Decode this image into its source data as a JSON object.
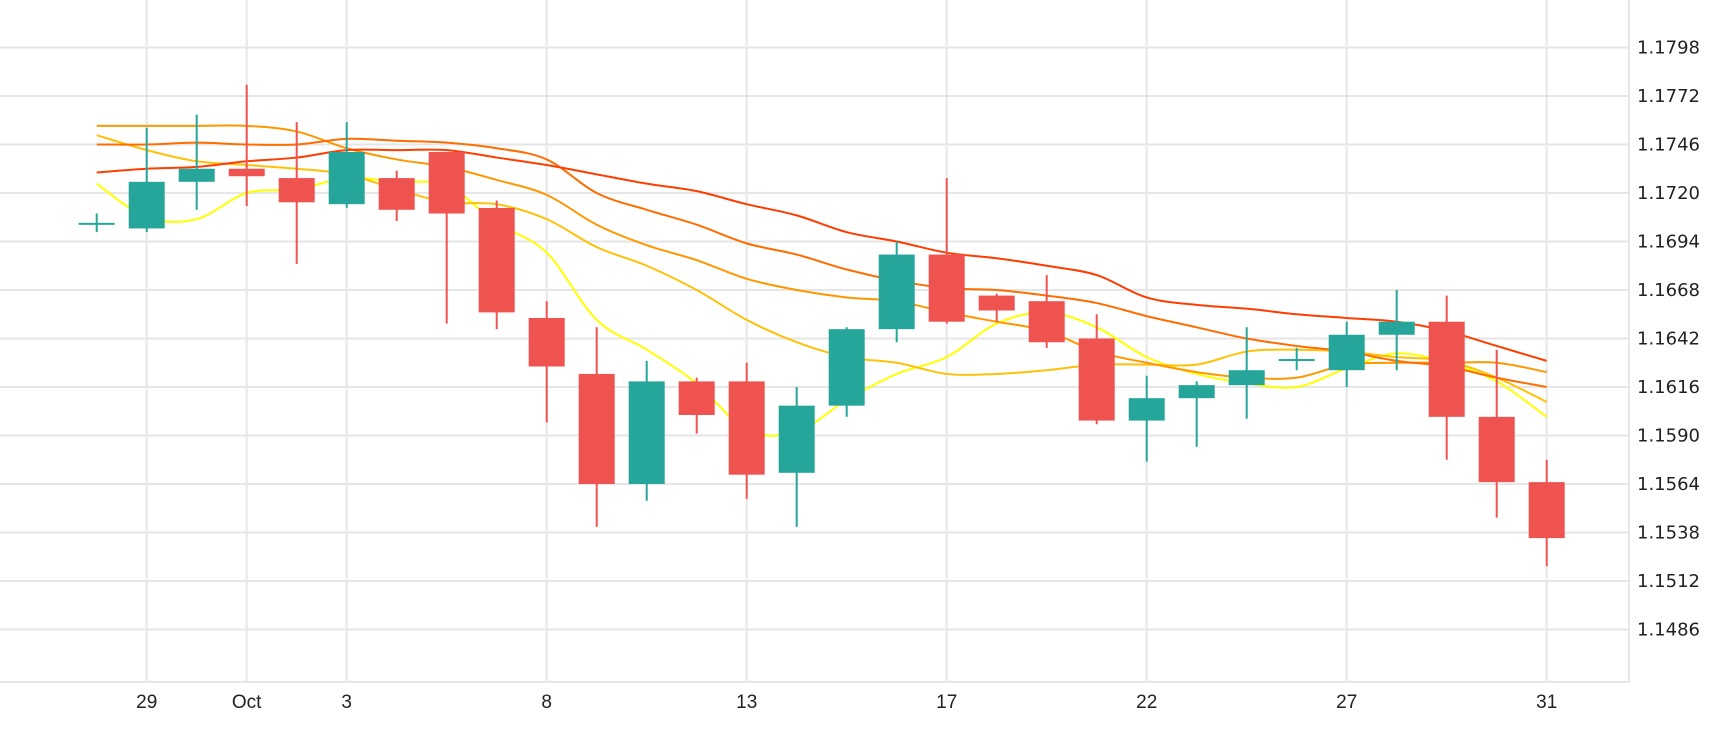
{
  "chart_data": {
    "type": "candlestick",
    "title": "",
    "xlabel": "",
    "ylabel": "",
    "ylim": [
      1.146,
      1.1825
    ],
    "grid": true,
    "y_ticks": [
      "1.1798",
      "1.1772",
      "1.1746",
      "1.1720",
      "1.1694",
      "1.1668",
      "1.1642",
      "1.1616",
      "1.1590",
      "1.1564",
      "1.1538",
      "1.1512",
      "1.1486"
    ],
    "x_ticks": [
      {
        "label": "29",
        "candle": 1
      },
      {
        "label": "Oct",
        "candle": 3
      },
      {
        "label": "3",
        "candle": 5
      },
      {
        "label": "8",
        "candle": 9
      },
      {
        "label": "13",
        "candle": 13
      },
      {
        "label": "17",
        "candle": 17
      },
      {
        "label": "22",
        "candle": 21
      },
      {
        "label": "27",
        "candle": 25
      },
      {
        "label": "31",
        "candle": 29
      }
    ],
    "candles_ohlc": [
      [
        1.1704,
        1.1709,
        1.1699,
        1.1704
      ],
      [
        1.1701,
        1.1755,
        1.1699,
        1.1726
      ],
      [
        1.1726,
        1.1762,
        1.1711,
        1.1733
      ],
      [
        1.1733,
        1.1778,
        1.1713,
        1.1729
      ],
      [
        1.1728,
        1.1758,
        1.1682,
        1.1715
      ],
      [
        1.1714,
        1.1758,
        1.1712,
        1.1742
      ],
      [
        1.1728,
        1.1732,
        1.1705,
        1.1711
      ],
      [
        1.1742,
        1.1742,
        1.165,
        1.1709
      ],
      [
        1.1712,
        1.1716,
        1.1647,
        1.1656
      ],
      [
        1.1653,
        1.1662,
        1.1597,
        1.1627
      ],
      [
        1.1623,
        1.1648,
        1.1541,
        1.1564
      ],
      [
        1.1564,
        1.163,
        1.1555,
        1.1619
      ],
      [
        1.1619,
        1.1621,
        1.1591,
        1.1601
      ],
      [
        1.1619,
        1.1629,
        1.1556,
        1.1569
      ],
      [
        1.157,
        1.1616,
        1.1541,
        1.1606
      ],
      [
        1.1606,
        1.1648,
        1.16,
        1.1647
      ],
      [
        1.1647,
        1.1694,
        1.164,
        1.1687
      ],
      [
        1.1687,
        1.1728,
        1.165,
        1.1651
      ],
      [
        1.1665,
        1.1666,
        1.1651,
        1.1657
      ],
      [
        1.1662,
        1.1676,
        1.1637,
        1.164
      ],
      [
        1.1642,
        1.1655,
        1.1596,
        1.1598
      ],
      [
        1.1598,
        1.1622,
        1.1576,
        1.161
      ],
      [
        1.161,
        1.1619,
        1.1584,
        1.1617
      ],
      [
        1.1617,
        1.1648,
        1.1599,
        1.1625
      ],
      [
        1.1631,
        1.1637,
        1.1625,
        1.1631
      ],
      [
        1.1625,
        1.1651,
        1.1616,
        1.1644
      ],
      [
        1.1644,
        1.1668,
        1.1625,
        1.1651
      ],
      [
        1.1651,
        1.1665,
        1.1577,
        1.16
      ],
      [
        1.16,
        1.1636,
        1.1546,
        1.1565
      ],
      [
        1.1565,
        1.1577,
        1.152,
        1.1535
      ]
    ],
    "colors": {
      "up": "#26a69a",
      "down": "#ef5350",
      "grid": "#e6e6e6"
    },
    "moving_averages": [
      {
        "color": "#ffff00",
        "values": [
          1.1725,
          1.1707,
          1.1706,
          1.172,
          1.1722,
          1.1728,
          1.1726,
          1.1724,
          1.1704,
          1.1688,
          1.1652,
          1.1636,
          1.1618,
          1.1593,
          1.1592,
          1.1609,
          1.1623,
          1.1632,
          1.165,
          1.1656,
          1.1648,
          1.1632,
          1.1623,
          1.1618,
          1.1616,
          1.1626,
          1.1634,
          1.1629,
          1.1619,
          1.16
        ]
      },
      {
        "color": "#ffc107",
        "values": [
          1.1751,
          1.1743,
          1.1737,
          1.1735,
          1.1733,
          1.173,
          1.1722,
          1.1715,
          1.1714,
          1.1706,
          1.1691,
          1.1681,
          1.1668,
          1.1652,
          1.164,
          1.1632,
          1.1629,
          1.1623,
          1.1623,
          1.1625,
          1.1628,
          1.1628,
          1.1628,
          1.1635,
          1.1636,
          1.1635,
          1.1632,
          1.163,
          1.1621,
          1.1608
        ]
      },
      {
        "color": "#ff9800",
        "values": [
          1.1756,
          1.1756,
          1.1756,
          1.1756,
          1.1753,
          1.1744,
          1.1738,
          1.1734,
          1.1727,
          1.1719,
          1.1703,
          1.1692,
          1.1684,
          1.1674,
          1.1668,
          1.1664,
          1.1662,
          1.1656,
          1.1651,
          1.1646,
          1.1635,
          1.1629,
          1.1624,
          1.1621,
          1.1621,
          1.1628,
          1.1629,
          1.1629,
          1.1629,
          1.1624
        ]
      },
      {
        "color": "#ff6d00",
        "values": [
          1.1746,
          1.1746,
          1.1747,
          1.1746,
          1.1746,
          1.1749,
          1.1748,
          1.1747,
          1.1744,
          1.1738,
          1.172,
          1.1711,
          1.1703,
          1.1693,
          1.1687,
          1.1679,
          1.1673,
          1.1669,
          1.1668,
          1.1665,
          1.1661,
          1.1654,
          1.1648,
          1.1642,
          1.1638,
          1.1635,
          1.163,
          1.1627,
          1.1621,
          1.1616
        ]
      },
      {
        "color": "#ff3d00",
        "values": [
          1.1731,
          1.1733,
          1.1734,
          1.1737,
          1.1739,
          1.1743,
          1.1743,
          1.1743,
          1.1739,
          1.1735,
          1.173,
          1.1725,
          1.1721,
          1.1714,
          1.1708,
          1.1699,
          1.1694,
          1.1688,
          1.1685,
          1.1681,
          1.1676,
          1.1664,
          1.166,
          1.1658,
          1.1655,
          1.1653,
          1.1651,
          1.1646,
          1.1638,
          1.163
        ]
      }
    ]
  }
}
